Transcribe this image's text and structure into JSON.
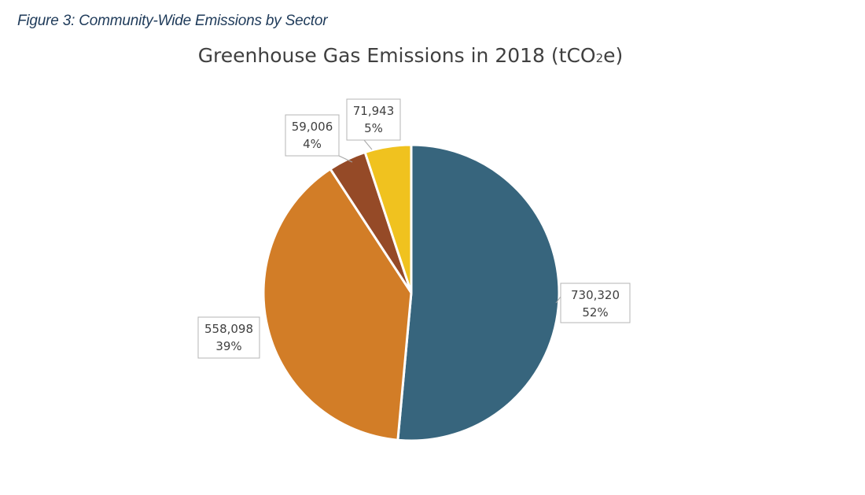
{
  "figure": {
    "caption": "Figure 3: Community-Wide Emissions by Sector"
  },
  "chart_data": {
    "type": "pie",
    "title_prefix": "Greenhouse Gas Emissions in 2018 (tCO",
    "title_sub": "2",
    "title_suffix": "e)",
    "title": "Greenhouse Gas Emissions in 2018 (tCO2e)",
    "slices": [
      {
        "value": 730320,
        "value_label": "730,320",
        "percent_label": "52%",
        "color": "#37657d"
      },
      {
        "value": 558098,
        "value_label": "558,098",
        "percent_label": "39%",
        "color": "#d27d27"
      },
      {
        "value": 59006,
        "value_label": "59,006",
        "percent_label": "4%",
        "color": "#954a27"
      },
      {
        "value": 71943,
        "value_label": "71,943",
        "percent_label": "5%",
        "color": "#f0c21f"
      }
    ],
    "legend_position": "bottom"
  }
}
